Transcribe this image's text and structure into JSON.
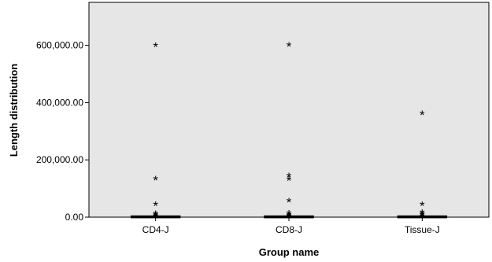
{
  "chart_data": {
    "type": "box",
    "xlabel": "Group name",
    "ylabel": "Length distribution",
    "ylim": [
      0,
      750000
    ],
    "yticks": [
      0,
      200000,
      400000,
      600000
    ],
    "ytick_labels": [
      "0.00",
      "200,000.00",
      "400,000.00",
      "600,000.00"
    ],
    "grid": false,
    "background_color": "#e6e6e6",
    "outlier_marker": "*",
    "categories": [
      "CD4-J",
      "CD8-J",
      "Tissue-J"
    ],
    "boxes": [
      {
        "name": "CD4-J",
        "median": 600,
        "q1": 0,
        "q3": 1200,
        "outliers": [
          2500,
          6000,
          10000,
          14000,
          45000,
          135000,
          600000
        ]
      },
      {
        "name": "CD8-J",
        "median": 600,
        "q1": 0,
        "q3": 1200,
        "outliers": [
          2500,
          6000,
          10000,
          15000,
          58000,
          133000,
          145000,
          602000
        ]
      },
      {
        "name": "Tissue-J",
        "median": 600,
        "q1": 0,
        "q3": 1200,
        "outliers": [
          3000,
          8000,
          12000,
          18000,
          45000,
          362000
        ]
      }
    ]
  }
}
